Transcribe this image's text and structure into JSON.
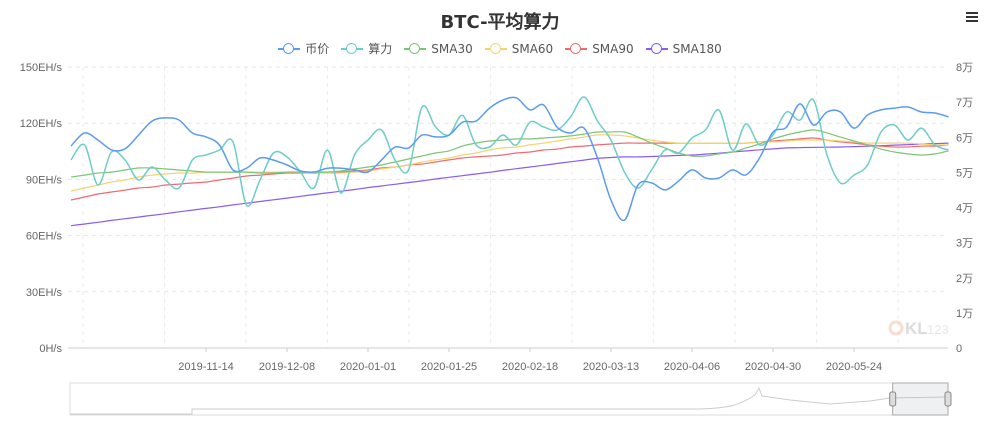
{
  "title": "BTC-平均算力",
  "menu_icon": "hamburger-menu-icon",
  "watermark": "QKL123",
  "chart_data": {
    "type": "line",
    "title": "BTC-平均算力",
    "legend_position": "top",
    "grid": true,
    "x": [
      "2019-10-05",
      "2019-10-09",
      "2019-10-13",
      "2019-10-17",
      "2019-10-21",
      "2019-10-25",
      "2019-10-29",
      "2019-11-02",
      "2019-11-06",
      "2019-11-10",
      "2019-11-14",
      "2019-11-18",
      "2019-11-22",
      "2019-11-26",
      "2019-11-30",
      "2019-12-04",
      "2019-12-08",
      "2019-12-12",
      "2019-12-16",
      "2019-12-20",
      "2019-12-24",
      "2019-12-28",
      "2020-01-01",
      "2020-01-05",
      "2020-01-09",
      "2020-01-13",
      "2020-01-17",
      "2020-01-21",
      "2020-01-25",
      "2020-01-29",
      "2020-02-02",
      "2020-02-06",
      "2020-02-10",
      "2020-02-14",
      "2020-02-18",
      "2020-02-22",
      "2020-02-26",
      "2020-03-01",
      "2020-03-05",
      "2020-03-09",
      "2020-03-13",
      "2020-03-17",
      "2020-03-21",
      "2020-03-25",
      "2020-03-29",
      "2020-04-02",
      "2020-04-06",
      "2020-04-10",
      "2020-04-14",
      "2020-04-18",
      "2020-04-22",
      "2020-04-26",
      "2020-04-30",
      "2020-05-04",
      "2020-05-08",
      "2020-05-12",
      "2020-05-16",
      "2020-05-20",
      "2020-05-24",
      "2020-05-28",
      "2020-06-01",
      "2020-06-05",
      "2020-06-09",
      "2020-06-13",
      "2020-06-17",
      "2020-06-21"
    ],
    "x_tick_labels": [
      "2019-11-14",
      "2019-12-08",
      "2020-01-01",
      "2020-01-25",
      "2020-02-18",
      "2020-03-13",
      "2020-04-06",
      "2020-04-30",
      "2020-05-24"
    ],
    "y_left": {
      "min": 0,
      "max": 150,
      "tick_labels": [
        "0H/s",
        "30EH/s",
        "60EH/s",
        "90EH/s",
        "120EH/s",
        "150EH/s"
      ]
    },
    "y_right": {
      "min": 0,
      "max": 80000,
      "tick_labels": [
        "0",
        "1万",
        "2万",
        "3万",
        "4万",
        "5万",
        "6万",
        "7万",
        "8万"
      ]
    },
    "series": [
      {
        "name": "币价",
        "axis": "right",
        "color": "#5b9bf0",
        "values": [
          57500,
          61200,
          59200,
          56400,
          56700,
          60600,
          64600,
          65500,
          64900,
          61200,
          60100,
          57800,
          50700,
          51200,
          54100,
          53500,
          52100,
          50400,
          50100,
          51200,
          51200,
          50700,
          50100,
          53500,
          57200,
          56900,
          60600,
          60100,
          60600,
          64300,
          64600,
          68300,
          70600,
          71200,
          67800,
          69200,
          62900,
          61200,
          62600,
          54100,
          42100,
          36400,
          46400,
          47000,
          45000,
          47500,
          50700,
          48400,
          48400,
          50700,
          49300,
          54100,
          61500,
          62900,
          69500,
          63500,
          67200,
          67200,
          62600,
          66300,
          67800,
          68300,
          68600,
          67200,
          66900,
          65800
        ]
      },
      {
        "name": "算力",
        "axis": "left",
        "color": "#6fcdc8",
        "values": [
          100.4,
          108.4,
          87.0,
          104.6,
          100.4,
          89.7,
          96.6,
          89.7,
          85.4,
          100.4,
          103.0,
          105.7,
          110.0,
          76.3,
          89.7,
          104.1,
          102.0,
          93.9,
          85.4,
          105.7,
          82.7,
          103.0,
          111.0,
          116.4,
          100.4,
          95.0,
          128.6,
          118.0,
          113.7,
          124.2,
          108.4,
          107.3,
          113.7,
          108.4,
          120.6,
          118.0,
          116.4,
          123.3,
          134.0,
          121.2,
          111.0,
          93.9,
          85.4,
          95.0,
          105.7,
          104.1,
          112.1,
          116.4,
          127.0,
          105.7,
          119.6,
          108.4,
          113.7,
          126.0,
          121.7,
          132.4,
          103.0,
          88.1,
          92.3,
          97.7,
          115.3,
          119.0,
          111.0,
          117.4,
          108.4,
          105.7
        ]
      },
      {
        "name": "SMA30",
        "axis": "left",
        "color": "#7cc576",
        "values": [
          91.3,
          92.3,
          93.4,
          93.9,
          95.0,
          96.1,
          96.1,
          95.6,
          95.0,
          94.5,
          93.9,
          93.9,
          93.9,
          93.9,
          93.4,
          93.4,
          93.9,
          93.9,
          93.4,
          93.9,
          94.5,
          95.6,
          96.6,
          97.7,
          99.3,
          100.9,
          102.5,
          104.1,
          105.2,
          107.8,
          109.4,
          110.5,
          111.0,
          111.6,
          111.6,
          112.1,
          112.6,
          113.2,
          114.2,
          115.3,
          115.3,
          115.3,
          112.6,
          109.4,
          106.8,
          104.1,
          102.5,
          102.5,
          103.6,
          104.6,
          106.8,
          108.9,
          111.6,
          113.7,
          115.3,
          116.4,
          114.8,
          112.6,
          110.5,
          108.4,
          106.2,
          104.6,
          103.6,
          103.0,
          103.6,
          105.2
        ]
      },
      {
        "name": "SMA60",
        "axis": "left",
        "color": "#f5d470",
        "values": [
          83.8,
          85.4,
          87.0,
          88.6,
          89.7,
          91.3,
          92.3,
          92.9,
          93.4,
          93.4,
          93.9,
          93.9,
          93.9,
          93.9,
          93.9,
          93.9,
          93.9,
          93.9,
          93.9,
          93.4,
          93.4,
          93.9,
          94.5,
          95.6,
          96.6,
          97.7,
          99.3,
          100.4,
          101.4,
          103.0,
          104.1,
          105.7,
          106.8,
          107.3,
          108.4,
          109.4,
          110.5,
          111.6,
          112.6,
          113.7,
          113.7,
          113.2,
          112.1,
          111.0,
          110.0,
          109.4,
          109.4,
          109.4,
          109.4,
          109.4,
          109.4,
          110.0,
          110.0,
          110.5,
          111.0,
          111.0,
          111.0,
          110.5,
          110.0,
          109.4,
          109.4,
          109.4,
          109.4,
          108.9,
          108.4,
          108.4
        ]
      },
      {
        "name": "SMA90",
        "axis": "left",
        "color": "#ee6b73",
        "values": [
          79.0,
          80.6,
          82.2,
          83.3,
          84.3,
          85.4,
          85.9,
          87.0,
          87.5,
          88.1,
          88.6,
          89.7,
          90.7,
          91.8,
          92.3,
          92.9,
          93.4,
          93.4,
          93.9,
          93.9,
          93.9,
          94.5,
          95.0,
          96.1,
          96.6,
          97.7,
          98.2,
          99.3,
          100.4,
          101.4,
          102.0,
          102.5,
          103.0,
          104.1,
          104.6,
          105.7,
          106.2,
          107.3,
          107.8,
          108.4,
          108.9,
          109.4,
          109.4,
          109.4,
          109.4,
          109.4,
          109.4,
          109.4,
          109.4,
          109.4,
          109.4,
          110.0,
          110.5,
          111.0,
          111.6,
          112.1,
          111.0,
          110.0,
          109.4,
          108.4,
          107.8,
          107.3,
          107.3,
          107.8,
          107.8,
          108.4
        ]
      },
      {
        "name": "SMA180",
        "axis": "left",
        "color": "#8b5cf0",
        "values": [
          65.3,
          66.2,
          67.1,
          68.1,
          69.0,
          69.9,
          70.8,
          71.7,
          72.7,
          73.6,
          74.5,
          75.4,
          76.4,
          77.3,
          78.2,
          79.1,
          80.0,
          81.0,
          81.9,
          82.8,
          83.7,
          84.6,
          85.6,
          86.5,
          87.4,
          88.3,
          89.2,
          90.2,
          91.1,
          92.0,
          92.9,
          93.8,
          94.8,
          95.7,
          96.6,
          97.5,
          98.5,
          99.4,
          100.3,
          101.2,
          101.7,
          102.0,
          102.0,
          102.2,
          102.5,
          102.8,
          103.0,
          103.5,
          104.0,
          104.6,
          105.2,
          105.8,
          106.3,
          106.8,
          107.0,
          107.1,
          107.2,
          107.3,
          107.5,
          107.7,
          108.0,
          108.3,
          108.6,
          108.9,
          109.1,
          109.4
        ]
      }
    ],
    "data_zoom": {
      "start_percent": 93.7,
      "end_percent": 100
    }
  }
}
